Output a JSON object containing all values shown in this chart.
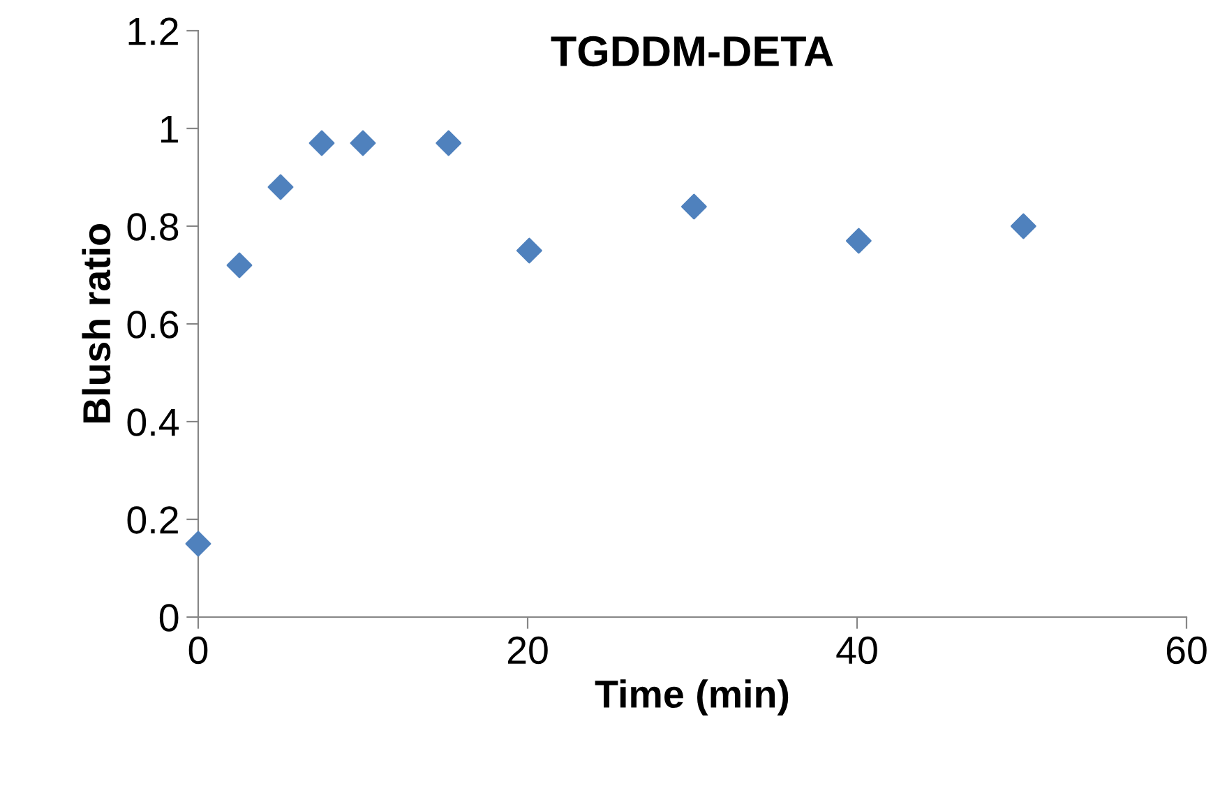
{
  "chart_data": {
    "type": "scatter",
    "title": "TGDDM-DETA",
    "xlabel": "Time (min)",
    "ylabel": "Blush ratio",
    "x": [
      0,
      2.5,
      5,
      7.5,
      10,
      15.2,
      20.1,
      30.1,
      40.1,
      50.1
    ],
    "series": [
      {
        "color": "#4f81bd",
        "values": [
          0.15,
          0.72,
          0.88,
          0.97,
          0.97,
          0.97,
          0.75,
          0.84,
          0.77,
          0.8
        ]
      }
    ],
    "xlim": [
      0,
      60
    ],
    "xticks": [
      0,
      20,
      40,
      60
    ],
    "ylim": [
      0,
      1.2
    ],
    "yticks": [
      0,
      0.2,
      0.4,
      0.6,
      0.8,
      1,
      1.2
    ],
    "grid": false,
    "legend": false,
    "marker": "diamond"
  }
}
